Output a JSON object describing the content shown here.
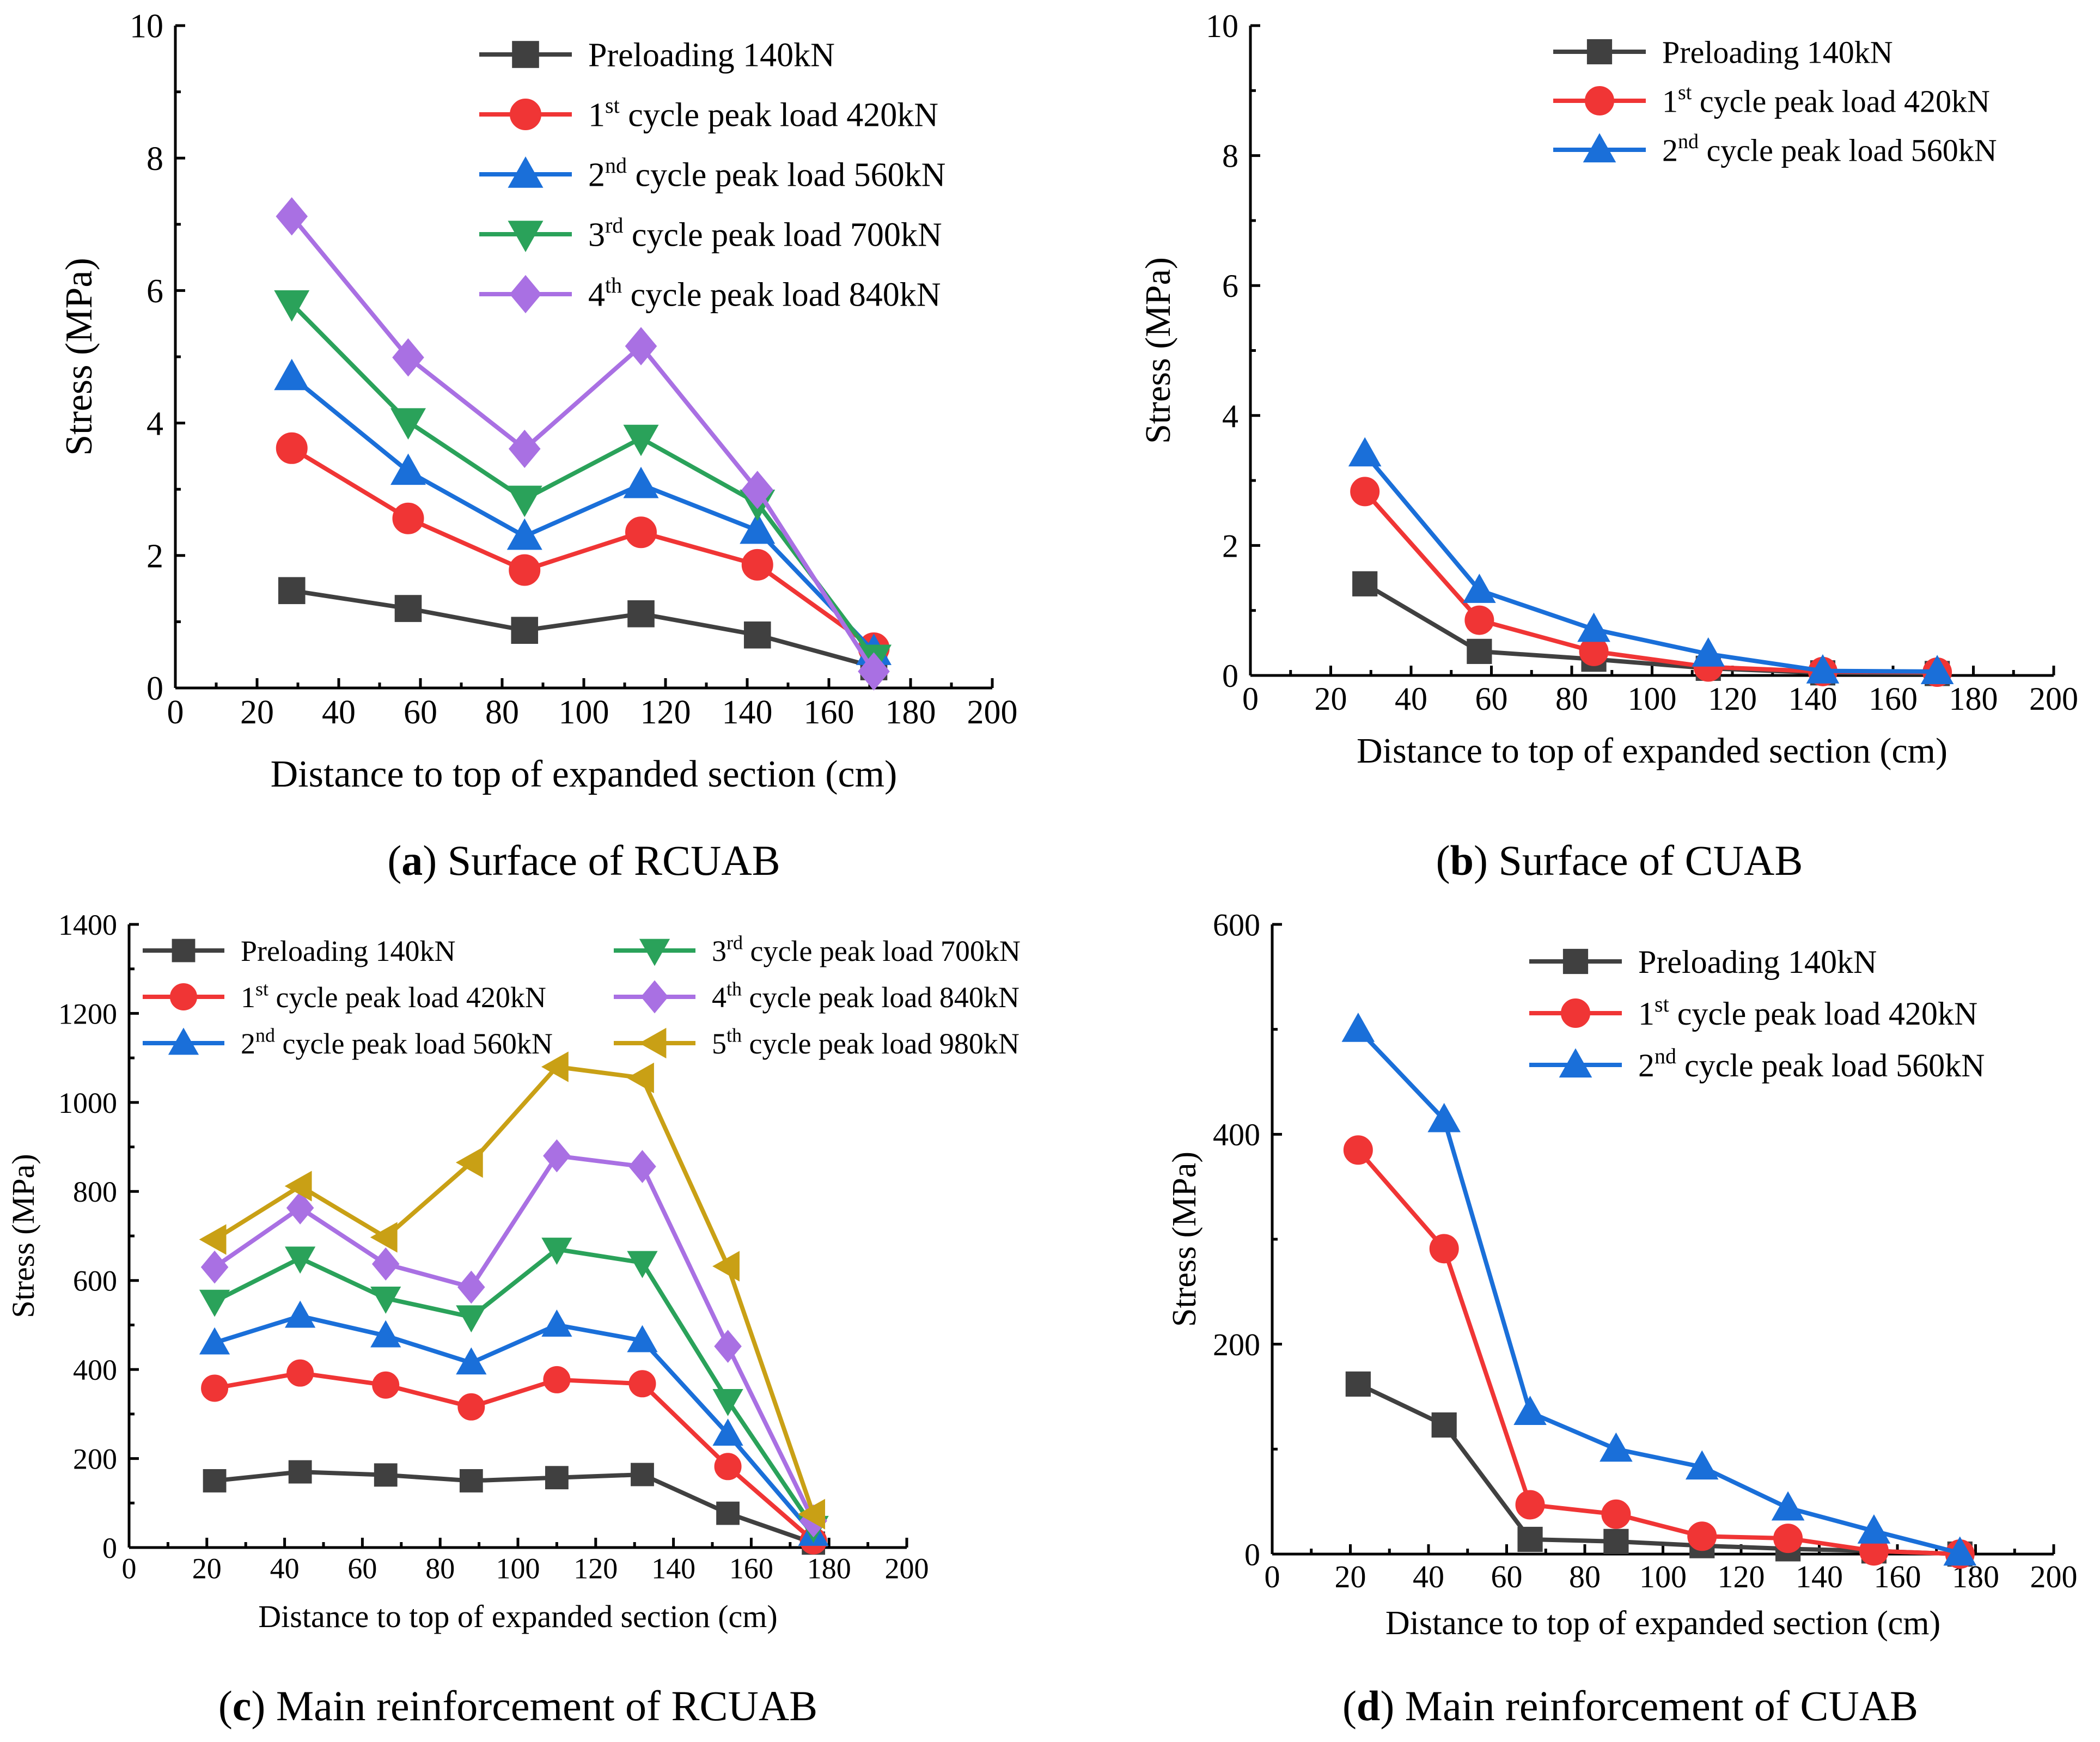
{
  "chart_data": [
    {
      "id": "a",
      "type": "line",
      "caption_bold": "a",
      "caption_text": "Surface of RCUAB",
      "xlabel": "Distance to top of expanded section (cm)",
      "ylabel": "Stress (MPa)",
      "xlim": [
        0,
        200
      ],
      "ylim": [
        0,
        10
      ],
      "xticks": [
        "0",
        "20",
        "40",
        "60",
        "80",
        "100",
        "120",
        "140",
        "160",
        "180",
        "200"
      ],
      "yticks": [
        "0",
        "2",
        "4",
        "6",
        "8",
        "10"
      ],
      "legend_columns": 1,
      "x": [
        28.5,
        57,
        85.5,
        114,
        142.5,
        171
      ],
      "series": [
        {
          "prefix": "Preloading 140kN",
          "sup": "",
          "suffix": "",
          "color": "#404040",
          "marker": "square",
          "values": [
            1.47,
            1.2,
            0.87,
            1.12,
            0.8,
            0.32
          ]
        },
        {
          "prefix": "1",
          "sup": "st",
          "suffix": " cycle peak load 420kN",
          "color": "#f03535",
          "marker": "circle",
          "values": [
            3.62,
            2.56,
            1.78,
            2.35,
            1.86,
            0.6
          ]
        },
        {
          "prefix": "2",
          "sup": "nd",
          "suffix": " cycle peak load 560kN",
          "color": "#1a6fd9",
          "marker": "triangle-up",
          "values": [
            4.7,
            3.27,
            2.29,
            3.07,
            2.38,
            0.55
          ]
        },
        {
          "prefix": "3",
          "sup": "rd",
          "suffix": " cycle peak load 700kN",
          "color": "#2aa25a",
          "marker": "triangle-down",
          "values": [
            5.8,
            4.02,
            2.85,
            3.77,
            2.79,
            0.45
          ]
        },
        {
          "prefix": "4",
          "sup": "th",
          "suffix": " cycle peak load 840kN",
          "color": "#a970e3",
          "marker": "diamond",
          "values": [
            7.12,
            4.99,
            3.61,
            5.16,
            2.99,
            0.25
          ]
        }
      ]
    },
    {
      "id": "b",
      "type": "line",
      "caption_bold": "b",
      "caption_text": "Surface of CUAB",
      "xlabel": "Distance to top of expanded section (cm)",
      "ylabel": "Stress (MPa)",
      "xlim": [
        0,
        200
      ],
      "ylim": [
        0,
        10
      ],
      "xticks": [
        "0",
        "20",
        "40",
        "60",
        "80",
        "100",
        "120",
        "140",
        "160",
        "180",
        "200"
      ],
      "yticks": [
        "0",
        "2",
        "4",
        "6",
        "8",
        "10"
      ],
      "legend_columns": 1,
      "x": [
        28.5,
        57,
        85.5,
        114,
        142.5,
        171
      ],
      "series": [
        {
          "prefix": "Preloading 140kN",
          "sup": "",
          "suffix": "",
          "color": "#404040",
          "marker": "square",
          "values": [
            1.41,
            0.37,
            0.25,
            0.11,
            0.04,
            0.03
          ]
        },
        {
          "prefix": "1",
          "sup": "st",
          "suffix": " cycle peak load 420kN",
          "color": "#f03535",
          "marker": "circle",
          "values": [
            2.83,
            0.85,
            0.37,
            0.13,
            0.06,
            0.05
          ]
        },
        {
          "prefix": "2",
          "sup": "nd",
          "suffix": " cycle peak load 560kN",
          "color": "#1a6fd9",
          "marker": "triangle-up",
          "values": [
            3.41,
            1.31,
            0.71,
            0.33,
            0.07,
            0.06
          ]
        }
      ]
    },
    {
      "id": "c",
      "type": "line",
      "caption_bold": "c",
      "caption_text": "Main reinforcement of RCUAB",
      "xlabel": "Distance to top of expanded section (cm)",
      "ylabel": "Stress (MPa)",
      "xlim": [
        0,
        200
      ],
      "ylim": [
        0,
        1400
      ],
      "xticks": [
        "0",
        "20",
        "40",
        "60",
        "80",
        "100",
        "120",
        "140",
        "160",
        "180",
        "200"
      ],
      "yticks": [
        "0",
        "200",
        "400",
        "600",
        "800",
        "1000",
        "1200",
        "1400"
      ],
      "legend_columns": 2,
      "x": [
        22,
        44,
        66,
        88,
        110,
        132,
        154,
        176
      ],
      "series": [
        {
          "prefix": "Preloading 140kN",
          "sup": "",
          "suffix": "",
          "color": "#404040",
          "marker": "square",
          "values": [
            150,
            170,
            163,
            150,
            157,
            164,
            77,
            10
          ]
        },
        {
          "prefix": "1",
          "sup": "st",
          "suffix": " cycle peak load 420kN",
          "color": "#f03535",
          "marker": "circle",
          "values": [
            358,
            392,
            365,
            316,
            377,
            368,
            182,
            15
          ]
        },
        {
          "prefix": "2",
          "sup": "nd",
          "suffix": " cycle peak load 560kN",
          "color": "#1a6fd9",
          "marker": "triangle-up",
          "values": [
            460,
            520,
            476,
            415,
            500,
            465,
            255,
            30
          ]
        },
        {
          "prefix": "3",
          "sup": "rd",
          "suffix": " cycle peak load 700kN",
          "color": "#2aa25a",
          "marker": "triangle-down",
          "values": [
            553,
            650,
            560,
            518,
            670,
            640,
            330,
            45
          ]
        },
        {
          "prefix": "4",
          "sup": "th",
          "suffix": " cycle peak load 840kN",
          "color": "#a970e3",
          "marker": "diamond",
          "values": [
            630,
            763,
            637,
            585,
            880,
            856,
            452,
            60
          ]
        },
        {
          "prefix": "5",
          "sup": "th",
          "suffix": " cycle peak load 980kN",
          "color": "#c9a015",
          "marker": "triangle-left",
          "values": [
            692,
            812,
            697,
            865,
            1080,
            1055,
            632,
            75
          ]
        }
      ]
    },
    {
      "id": "d",
      "type": "line",
      "caption_bold": "d",
      "caption_text": "Main reinforcement of CUAB",
      "xlabel": "Distance to top of expanded section (cm)",
      "ylabel": "Stress (MPa)",
      "xlim": [
        0,
        200
      ],
      "ylim": [
        0,
        600
      ],
      "xticks": [
        "0",
        "20",
        "40",
        "60",
        "80",
        "100",
        "120",
        "140",
        "160",
        "180",
        "200"
      ],
      "yticks": [
        "0",
        "200",
        "400",
        "600"
      ],
      "legend_columns": 1,
      "x": [
        22,
        44,
        66,
        88,
        110,
        132,
        154,
        176
      ],
      "series": [
        {
          "prefix": "Preloading 140kN",
          "sup": "",
          "suffix": "",
          "color": "#404040",
          "marker": "square",
          "values": [
            162,
            123,
            14,
            12,
            8,
            5,
            3,
            0
          ]
        },
        {
          "prefix": "1",
          "sup": "st",
          "suffix": " cycle peak load 420kN",
          "color": "#f03535",
          "marker": "circle",
          "values": [
            385,
            291,
            47,
            38,
            17,
            15,
            3,
            0
          ]
        },
        {
          "prefix": "2",
          "sup": "nd",
          "suffix": " cycle peak load 560kN",
          "color": "#1a6fd9",
          "marker": "triangle-up",
          "values": [
            500,
            414,
            135,
            100,
            83,
            44,
            22,
            1
          ]
        }
      ]
    }
  ]
}
